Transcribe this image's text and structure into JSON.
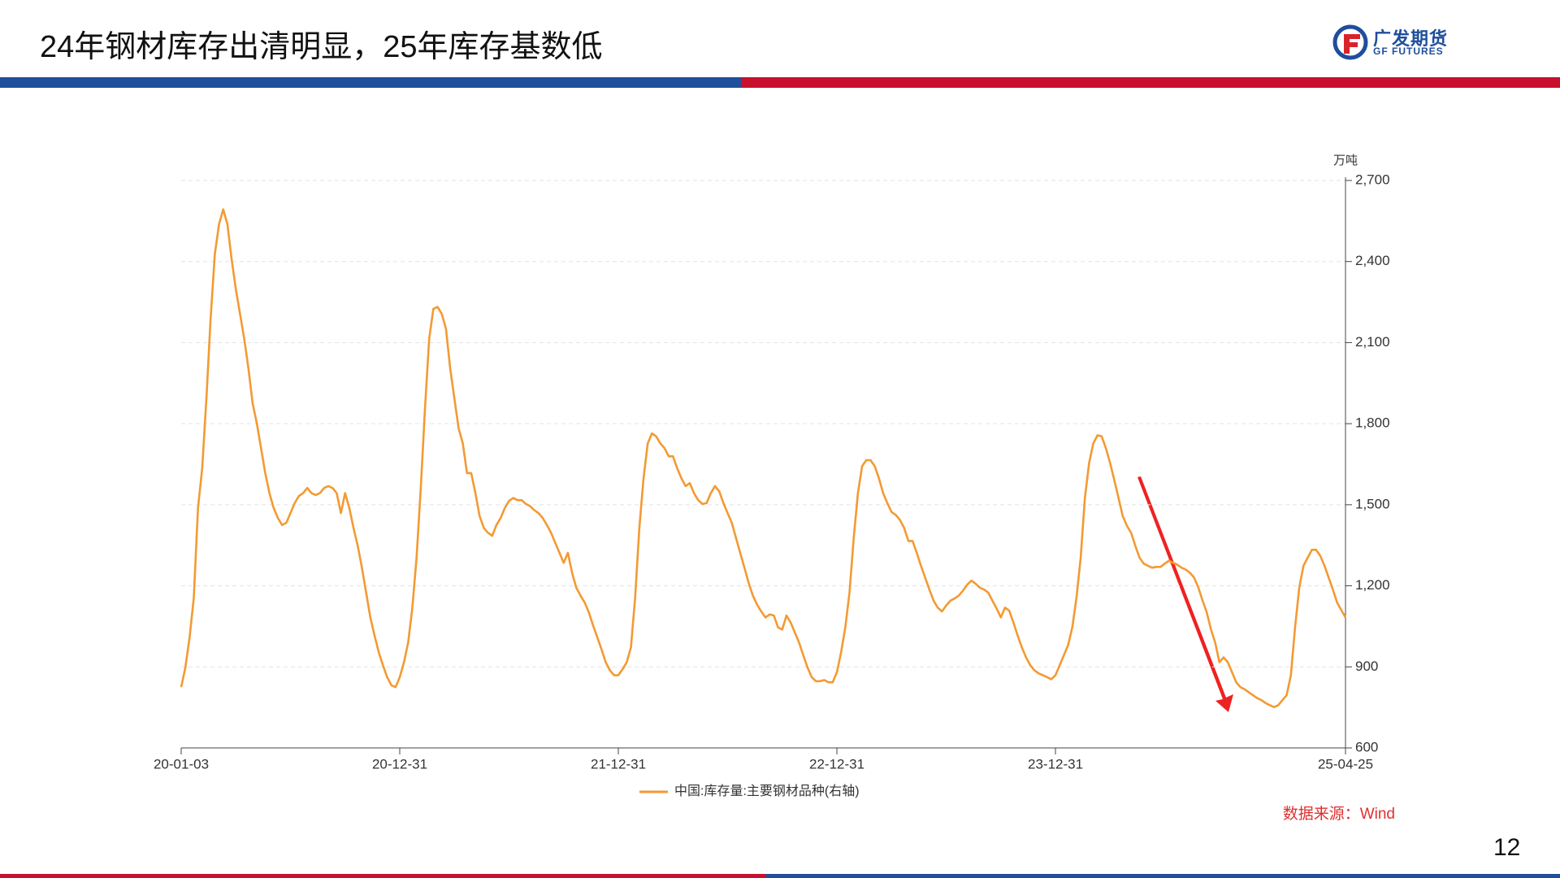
{
  "header": {
    "title": "24年钢材库存出清明显，25年库存基数低"
  },
  "logo": {
    "name": "广发期货",
    "english": "GF FUTURES"
  },
  "chart_data": {
    "type": "line",
    "y_axis_label": "万吨",
    "y_axis_side": "right",
    "grid": true,
    "ylim": [
      600,
      2700
    ],
    "yticks": [
      {
        "value": 600,
        "label": "600"
      },
      {
        "value": 900,
        "label": "900"
      },
      {
        "value": 1200,
        "label": "1,200"
      },
      {
        "value": 1500,
        "label": "1,500"
      },
      {
        "value": 1800,
        "label": "1,800"
      },
      {
        "value": 2100,
        "label": "2,100"
      },
      {
        "value": 2400,
        "label": "2,400"
      },
      {
        "value": 2700,
        "label": "2,700"
      }
    ],
    "categories": [
      "20-01-03",
      null,
      null,
      null,
      null,
      null,
      null,
      null,
      null,
      null,
      null,
      null,
      null,
      null,
      null,
      null,
      null,
      null,
      null,
      null,
      null,
      null,
      null,
      null,
      null,
      null,
      null,
      null,
      null,
      null,
      null,
      null,
      null,
      null,
      null,
      null,
      null,
      null,
      null,
      null,
      null,
      null,
      null,
      null,
      null,
      null,
      null,
      null,
      null,
      null,
      null,
      null,
      "20-12-31",
      null,
      null,
      null,
      null,
      null,
      null,
      null,
      null,
      null,
      null,
      null,
      null,
      null,
      null,
      null,
      null,
      null,
      null,
      null,
      null,
      null,
      null,
      null,
      null,
      null,
      null,
      null,
      null,
      null,
      null,
      null,
      null,
      null,
      null,
      null,
      null,
      null,
      null,
      null,
      null,
      null,
      null,
      null,
      null,
      null,
      null,
      null,
      null,
      null,
      null,
      null,
      "21-12-31",
      null,
      null,
      null,
      null,
      null,
      null,
      null,
      null,
      null,
      null,
      null,
      null,
      null,
      null,
      null,
      null,
      null,
      null,
      null,
      null,
      null,
      null,
      null,
      null,
      null,
      null,
      null,
      null,
      null,
      null,
      null,
      null,
      null,
      null,
      null,
      null,
      null,
      null,
      null,
      null,
      null,
      null,
      null,
      null,
      null,
      null,
      null,
      null,
      null,
      null,
      null,
      "22-12-31",
      null,
      null,
      null,
      null,
      null,
      null,
      null,
      null,
      null,
      null,
      null,
      null,
      null,
      null,
      null,
      null,
      null,
      null,
      null,
      null,
      null,
      null,
      null,
      null,
      null,
      null,
      null,
      null,
      null,
      null,
      null,
      null,
      null,
      null,
      null,
      null,
      null,
      null,
      null,
      null,
      null,
      null,
      null,
      null,
      null,
      null,
      null,
      null,
      null,
      null,
      null,
      "23-12-31",
      null,
      null,
      null,
      null,
      null,
      null,
      null,
      null,
      null,
      null,
      null,
      null,
      null,
      null,
      null,
      null,
      null,
      null,
      null,
      null,
      null,
      null,
      null,
      null,
      null,
      null,
      null,
      null,
      null,
      null,
      null,
      null,
      null,
      null,
      null,
      null,
      null,
      null,
      null,
      null,
      null,
      null,
      null,
      null,
      null,
      null,
      null,
      null,
      null,
      null,
      null,
      null,
      null,
      null,
      null,
      null,
      null,
      null,
      null,
      null,
      null,
      null,
      null,
      null,
      null,
      null,
      null,
      null,
      "25-04-25"
    ],
    "series": [
      {
        "name": "中国:库存量:主要钢材品种(右轴)",
        "color": "#f39a33",
        "values": [
          825,
          898,
          1009,
          1156,
          1488,
          1635,
          1893,
          2188,
          2427,
          2538,
          2593,
          2538,
          2409,
          2298,
          2206,
          2114,
          2004,
          1875,
          1801,
          1709,
          1617,
          1543,
          1488,
          1451,
          1425,
          1433,
          1469,
          1506,
          1532,
          1543,
          1562,
          1543,
          1536,
          1543,
          1562,
          1569,
          1562,
          1543,
          1469,
          1543,
          1488,
          1414,
          1348,
          1267,
          1175,
          1083,
          1016,
          954,
          906,
          862,
          832,
          825,
          862,
          917,
          990,
          1120,
          1304,
          1562,
          1856,
          2114,
          2225,
          2232,
          2206,
          2151,
          2004,
          1893,
          1783,
          1727,
          1617,
          1617,
          1543,
          1458,
          1414,
          1396,
          1385,
          1425,
          1451,
          1488,
          1514,
          1525,
          1517,
          1517,
          1503,
          1495,
          1480,
          1469,
          1451,
          1425,
          1396,
          1359,
          1322,
          1285,
          1322,
          1248,
          1193,
          1164,
          1138,
          1101,
          1053,
          1009,
          965,
          917,
          887,
          869,
          869,
          891,
          917,
          972,
          1156,
          1414,
          1598,
          1727,
          1764,
          1753,
          1727,
          1709,
          1679,
          1679,
          1635,
          1598,
          1569,
          1580,
          1543,
          1517,
          1503,
          1506,
          1543,
          1569,
          1550,
          1506,
          1469,
          1433,
          1377,
          1322,
          1267,
          1211,
          1164,
          1131,
          1105,
          1083,
          1094,
          1090,
          1046,
          1038,
          1090,
          1064,
          1027,
          990,
          943,
          898,
          862,
          847,
          847,
          851,
          843,
          843,
          880,
          954,
          1046,
          1175,
          1377,
          1543,
          1643,
          1665,
          1665,
          1643,
          1598,
          1543,
          1506,
          1473,
          1462,
          1444,
          1414,
          1366,
          1366,
          1322,
          1274,
          1230,
          1186,
          1145,
          1119,
          1105,
          1127,
          1145,
          1153,
          1164,
          1182,
          1204,
          1219,
          1208,
          1193,
          1186,
          1175,
          1145,
          1116,
          1083,
          1119,
          1108,
          1064,
          1016,
          972,
          935,
          906,
          887,
          876,
          869,
          862,
          854,
          869,
          906,
          943,
          980,
          1046,
          1156,
          1304,
          1525,
          1654,
          1727,
          1757,
          1753,
          1709,
          1654,
          1591,
          1525,
          1458,
          1422,
          1396,
          1348,
          1304,
          1282,
          1274,
          1267,
          1270,
          1270,
          1282,
          1293,
          1285,
          1278,
          1267,
          1260,
          1248,
          1230,
          1193,
          1145,
          1101,
          1038,
          990,
          917,
          935,
          917,
          880,
          843,
          825,
          817,
          806,
          795,
          784,
          777,
          766,
          758,
          751,
          758,
          777,
          795,
          869,
          1046,
          1193,
          1274,
          1304,
          1333,
          1333,
          1311,
          1274,
          1230,
          1186,
          1138,
          1110,
          1083
        ]
      }
    ]
  },
  "source": "数据来源：Wind",
  "page_number": "12"
}
